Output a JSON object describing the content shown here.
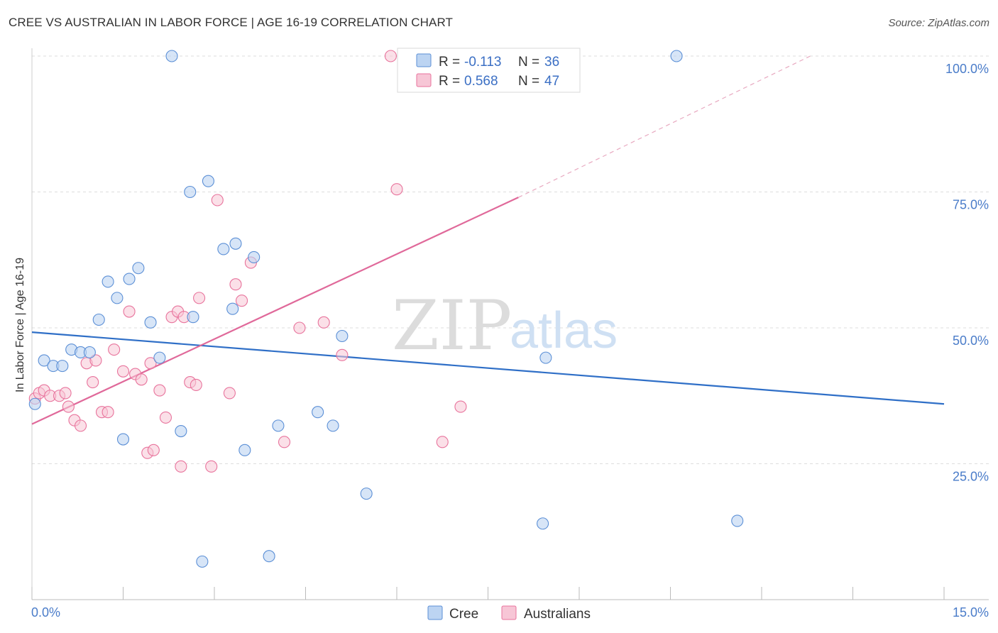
{
  "header": {
    "title": "CREE VS AUSTRALIAN IN LABOR FORCE | AGE 16-19 CORRELATION CHART",
    "source": "Source: ZipAtlas.com"
  },
  "watermark": {
    "zip": "ZIP",
    "atlas": "atlas"
  },
  "chart_data": {
    "type": "scatter",
    "title": "CREE VS AUSTRALIAN IN LABOR FORCE | AGE 16-19 CORRELATION CHART",
    "xlabel": "",
    "ylabel": "In Labor Force | Age 16-19",
    "xlim": [
      0,
      15
    ],
    "ylim": [
      0,
      100
    ],
    "x_tick_labels": [
      {
        "value": 0,
        "label": "0.0%"
      },
      {
        "value": 15,
        "label": "15.0%"
      }
    ],
    "y_tick_labels": [
      {
        "value": 100,
        "label": "100.0%"
      },
      {
        "value": 75,
        "label": "75.0%"
      },
      {
        "value": 50,
        "label": "50.0%"
      },
      {
        "value": 25,
        "label": "25.0%"
      }
    ],
    "grid": true,
    "legend_position": "top-center",
    "colors": {
      "cree": "#5b8fd6",
      "cree_fill": "#bcd4f2",
      "cree_line": "#2f6fc7",
      "australians": "#e8739c",
      "australians_fill": "#f7c6d6",
      "australians_line": "#e0699a",
      "tick_label": "#4a7cc9"
    },
    "stats_legend": [
      {
        "series": "Cree",
        "r_label": "R =",
        "r": "-0.113",
        "n_label": "N =",
        "n": "36"
      },
      {
        "series": "Australians",
        "r_label": "R =",
        "r": "0.568",
        "n_label": "N =",
        "n": "47"
      }
    ],
    "bottom_legend": [
      "Cree",
      "Australians"
    ],
    "series": [
      {
        "name": "Cree",
        "trend": {
          "x0": 0,
          "y0": 49.2,
          "x1": 15,
          "y1": 36.0
        },
        "points": [
          [
            0.05,
            36.0
          ],
          [
            0.2,
            44.0
          ],
          [
            0.35,
            43.0
          ],
          [
            0.5,
            43.0
          ],
          [
            0.65,
            46.0
          ],
          [
            0.8,
            45.5
          ],
          [
            0.95,
            45.5
          ],
          [
            1.1,
            51.5
          ],
          [
            1.25,
            58.5
          ],
          [
            1.4,
            55.5
          ],
          [
            1.5,
            29.5
          ],
          [
            1.6,
            59.0
          ],
          [
            1.75,
            61.0
          ],
          [
            1.95,
            51.0
          ],
          [
            2.1,
            44.5
          ],
          [
            2.3,
            100.0
          ],
          [
            2.45,
            31.0
          ],
          [
            2.6,
            75.0
          ],
          [
            2.65,
            52.0
          ],
          [
            2.8,
            7.0
          ],
          [
            2.9,
            77.0
          ],
          [
            3.15,
            64.5
          ],
          [
            3.3,
            53.5
          ],
          [
            3.35,
            65.5
          ],
          [
            3.5,
            27.5
          ],
          [
            3.65,
            63.0
          ],
          [
            3.9,
            8.0
          ],
          [
            4.05,
            32.0
          ],
          [
            4.7,
            34.5
          ],
          [
            4.95,
            32.0
          ],
          [
            5.1,
            48.5
          ],
          [
            5.5,
            19.5
          ],
          [
            8.4,
            14.0
          ],
          [
            8.45,
            44.5
          ],
          [
            10.6,
            100.0
          ],
          [
            11.6,
            14.5
          ]
        ]
      },
      {
        "name": "Australians",
        "trend": {
          "x0": 0,
          "y0": 32.3,
          "x1": 8.0,
          "y1": 74.0,
          "dash_x1": 12.8,
          "dash_y1": 100.0
        },
        "points": [
          [
            0.05,
            37.0
          ],
          [
            0.12,
            38.0
          ],
          [
            0.2,
            38.5
          ],
          [
            0.3,
            37.5
          ],
          [
            0.45,
            37.5
          ],
          [
            0.55,
            38.0
          ],
          [
            0.6,
            35.5
          ],
          [
            0.7,
            33.0
          ],
          [
            0.8,
            32.0
          ],
          [
            0.9,
            43.5
          ],
          [
            1.0,
            40.0
          ],
          [
            1.05,
            44.0
          ],
          [
            1.15,
            34.5
          ],
          [
            1.25,
            34.5
          ],
          [
            1.35,
            46.0
          ],
          [
            1.5,
            42.0
          ],
          [
            1.6,
            53.0
          ],
          [
            1.7,
            41.5
          ],
          [
            1.8,
            40.5
          ],
          [
            1.9,
            27.0
          ],
          [
            1.95,
            43.5
          ],
          [
            2.0,
            27.5
          ],
          [
            2.1,
            38.5
          ],
          [
            2.2,
            33.5
          ],
          [
            2.3,
            52.0
          ],
          [
            2.4,
            53.0
          ],
          [
            2.45,
            24.5
          ],
          [
            2.5,
            52.0
          ],
          [
            2.6,
            40.0
          ],
          [
            2.7,
            39.5
          ],
          [
            2.75,
            55.5
          ],
          [
            2.95,
            24.5
          ],
          [
            3.05,
            73.5
          ],
          [
            3.25,
            38.0
          ],
          [
            3.35,
            58.0
          ],
          [
            3.45,
            55.0
          ],
          [
            3.6,
            62.0
          ],
          [
            4.15,
            29.0
          ],
          [
            4.4,
            50.0
          ],
          [
            4.8,
            51.0
          ],
          [
            5.1,
            45.0
          ],
          [
            5.9,
            100.0
          ],
          [
            6.0,
            75.5
          ],
          [
            6.2,
            100.0
          ],
          [
            6.4,
            100.0
          ],
          [
            6.75,
            29.0
          ],
          [
            7.05,
            35.5
          ]
        ]
      }
    ]
  }
}
